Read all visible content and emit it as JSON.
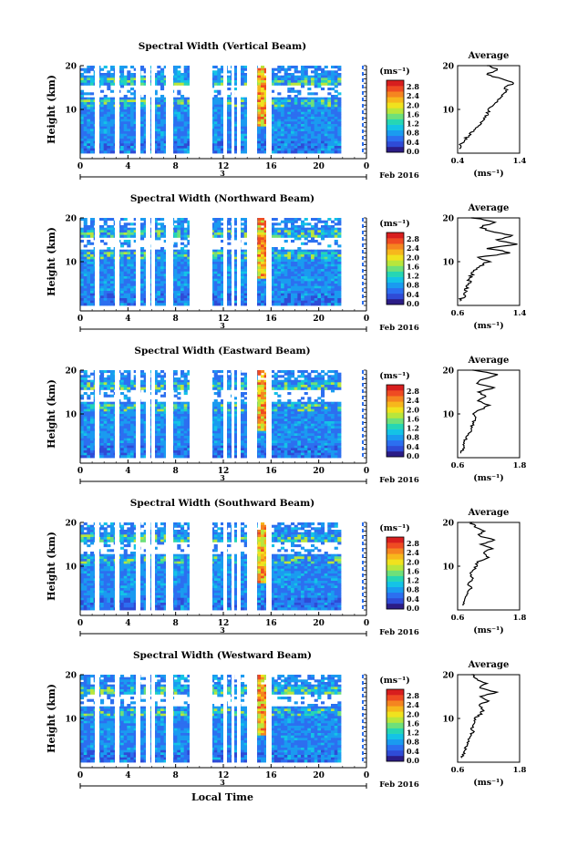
{
  "chart_data": [
    {
      "type": "heatmap",
      "title": "Spectral Width (Vertical Beam)",
      "ylabel": "Height (km)",
      "ylim": [
        0,
        20
      ],
      "yticks": [
        "20",
        "10"
      ],
      "xticks": [
        "0",
        "4",
        "8",
        "12",
        "16",
        "20",
        "0"
      ],
      "xlim": [
        0,
        24
      ],
      "date_marker": "3",
      "date_label": "Feb 2016",
      "units_label": "(ms⁻¹)",
      "colorbar_ticks": [
        "2.8",
        "2.4",
        "2.0",
        "1.6",
        "1.2",
        "0.8",
        "0.4",
        "0.0"
      ],
      "avg_title": "Average",
      "avg_xticks": [
        "0.4",
        "1.4"
      ],
      "avg_xlim": [
        0.4,
        1.4
      ],
      "avg_yticks": [
        "20",
        "10"
      ],
      "avg_xlabel": "(ms⁻¹)",
      "avg_profile": [
        [
          0.42,
          1
        ],
        [
          0.45,
          2
        ],
        [
          0.5,
          3
        ],
        [
          0.58,
          4
        ],
        [
          0.65,
          5
        ],
        [
          0.7,
          6
        ],
        [
          0.78,
          7
        ],
        [
          0.82,
          8
        ],
        [
          0.88,
          9
        ],
        [
          0.9,
          10
        ],
        [
          0.95,
          11
        ],
        [
          1.05,
          12
        ],
        [
          1.1,
          13
        ],
        [
          1.2,
          14
        ],
        [
          1.15,
          15
        ],
        [
          1.3,
          16
        ],
        [
          1.1,
          17
        ],
        [
          0.85,
          18
        ],
        [
          1.05,
          19
        ],
        [
          0.9,
          20
        ]
      ]
    },
    {
      "type": "heatmap",
      "title": "Spectral Width (Northward Beam)",
      "ylabel": "Height (km)",
      "ylim": [
        0,
        20
      ],
      "yticks": [
        "20",
        "10"
      ],
      "xticks": [
        "0",
        "4",
        "8",
        "12",
        "16",
        "20",
        "0"
      ],
      "xlim": [
        0,
        24
      ],
      "date_marker": "3",
      "date_label": "Feb 2016",
      "units_label": "(ms⁻¹)",
      "colorbar_ticks": [
        "2.8",
        "2.4",
        "2.0",
        "1.6",
        "1.2",
        "0.8",
        "0.4",
        "0.0"
      ],
      "avg_title": "Average",
      "avg_xticks": [
        "0.6",
        "1.4"
      ],
      "avg_xlim": [
        0.6,
        1.4
      ],
      "avg_yticks": [
        "20",
        "10"
      ],
      "avg_xlabel": "(ms⁻¹)",
      "avg_profile": [
        [
          0.62,
          1
        ],
        [
          0.68,
          2
        ],
        [
          0.7,
          3
        ],
        [
          0.72,
          4
        ],
        [
          0.74,
          5
        ],
        [
          0.76,
          6
        ],
        [
          0.78,
          7
        ],
        [
          0.8,
          8
        ],
        [
          0.88,
          9
        ],
        [
          1.0,
          10
        ],
        [
          0.85,
          11
        ],
        [
          1.3,
          12
        ],
        [
          1.0,
          13
        ],
        [
          1.35,
          14
        ],
        [
          1.1,
          15
        ],
        [
          1.3,
          16
        ],
        [
          1.0,
          17
        ],
        [
          0.9,
          18
        ],
        [
          1.1,
          19
        ],
        [
          0.8,
          20
        ]
      ]
    },
    {
      "type": "heatmap",
      "title": "Spectral Width (Eastward Beam)",
      "ylabel": "Height (km)",
      "ylim": [
        0,
        20
      ],
      "yticks": [
        "20",
        "10"
      ],
      "xticks": [
        "0",
        "4",
        "8",
        "12",
        "16",
        "20",
        "0"
      ],
      "xlim": [
        0,
        24
      ],
      "date_marker": "3",
      "date_label": "Feb 2016",
      "units_label": "(ms⁻¹)",
      "colorbar_ticks": [
        "2.8",
        "2.4",
        "2.0",
        "1.6",
        "1.2",
        "0.8",
        "0.4",
        "0.0"
      ],
      "avg_title": "Average",
      "avg_xticks": [
        "0.6",
        "1.8"
      ],
      "avg_xlim": [
        0.6,
        1.8
      ],
      "avg_yticks": [
        "20",
        "10"
      ],
      "avg_xlabel": "(ms⁻¹)",
      "avg_profile": [
        [
          0.65,
          1
        ],
        [
          0.7,
          2
        ],
        [
          0.72,
          3
        ],
        [
          0.75,
          4
        ],
        [
          0.8,
          5
        ],
        [
          0.85,
          6
        ],
        [
          0.88,
          7
        ],
        [
          0.9,
          8
        ],
        [
          0.95,
          9
        ],
        [
          0.9,
          10
        ],
        [
          1.05,
          11
        ],
        [
          1.2,
          12
        ],
        [
          1.0,
          13
        ],
        [
          1.15,
          14
        ],
        [
          1.0,
          15
        ],
        [
          1.3,
          16
        ],
        [
          0.95,
          17
        ],
        [
          1.1,
          18
        ],
        [
          1.4,
          19
        ],
        [
          0.9,
          20
        ]
      ]
    },
    {
      "type": "heatmap",
      "title": "Spectral Width (Southward Beam)",
      "ylabel": "Height (km)",
      "ylim": [
        0,
        20
      ],
      "yticks": [
        "20",
        "10"
      ],
      "xticks": [
        "0",
        "4",
        "8",
        "12",
        "16",
        "20",
        "0"
      ],
      "xlim": [
        0,
        24
      ],
      "date_marker": "3",
      "date_label": "Feb 2016",
      "units_label": "(ms⁻¹)",
      "colorbar_ticks": [
        "2.8",
        "2.4",
        "2.0",
        "1.6",
        "1.2",
        "0.8",
        "0.4",
        "0.0"
      ],
      "avg_title": "Average",
      "avg_xticks": [
        "0.6",
        "1.8"
      ],
      "avg_xlim": [
        0.6,
        1.8
      ],
      "avg_yticks": [
        "20",
        "10"
      ],
      "avg_xlabel": "(ms⁻¹)",
      "avg_profile": [
        [
          0.7,
          1
        ],
        [
          0.75,
          2
        ],
        [
          0.78,
          3
        ],
        [
          0.8,
          4
        ],
        [
          0.85,
          5
        ],
        [
          0.82,
          6
        ],
        [
          0.9,
          7
        ],
        [
          0.85,
          8
        ],
        [
          0.9,
          9
        ],
        [
          0.95,
          10
        ],
        [
          1.0,
          11
        ],
        [
          1.2,
          12
        ],
        [
          1.1,
          13
        ],
        [
          1.25,
          14
        ],
        [
          1.05,
          15
        ],
        [
          1.3,
          16
        ],
        [
          1.0,
          17
        ],
        [
          1.1,
          18
        ],
        [
          0.95,
          19
        ],
        [
          0.85,
          20
        ]
      ]
    },
    {
      "type": "heatmap",
      "title": "Spectral Width (Westward Beam)",
      "ylabel": "Height (km)",
      "ylim": [
        0,
        20
      ],
      "yticks": [
        "20",
        "10"
      ],
      "xticks": [
        "0",
        "4",
        "8",
        "12",
        "16",
        "20",
        "0"
      ],
      "xlim": [
        0,
        24
      ],
      "date_marker": "3",
      "date_label": "Feb 2016",
      "units_label": "(ms⁻¹)",
      "colorbar_ticks": [
        "2.8",
        "2.4",
        "2.0",
        "1.6",
        "1.2",
        "0.8",
        "0.4",
        "0.0"
      ],
      "avg_title": "Average",
      "avg_xticks": [
        "0.6",
        "1.8"
      ],
      "avg_xlim": [
        0.6,
        1.8
      ],
      "avg_yticks": [
        "20",
        "10"
      ],
      "avg_xlabel": "(ms⁻¹)",
      "avg_profile": [
        [
          0.68,
          1
        ],
        [
          0.72,
          2
        ],
        [
          0.75,
          3
        ],
        [
          0.78,
          4
        ],
        [
          0.8,
          5
        ],
        [
          0.85,
          6
        ],
        [
          0.9,
          7
        ],
        [
          0.88,
          8
        ],
        [
          0.95,
          9
        ],
        [
          0.92,
          10
        ],
        [
          1.05,
          11
        ],
        [
          1.1,
          12
        ],
        [
          1.0,
          13
        ],
        [
          1.2,
          14
        ],
        [
          1.05,
          15
        ],
        [
          1.35,
          16
        ],
        [
          1.0,
          17
        ],
        [
          1.15,
          18
        ],
        [
          0.95,
          19
        ],
        [
          0.9,
          20
        ]
      ]
    }
  ],
  "xlabel": "Local Time",
  "colorbar_colors": [
    "#2b1c86",
    "#2f4bd6",
    "#2c6ff0",
    "#1a9bf0",
    "#14c3e6",
    "#26d6b4",
    "#6ee07a",
    "#b8e63c",
    "#f0e21e",
    "#f7b71c",
    "#f58520",
    "#ef4b22",
    "#d81e1e"
  ]
}
